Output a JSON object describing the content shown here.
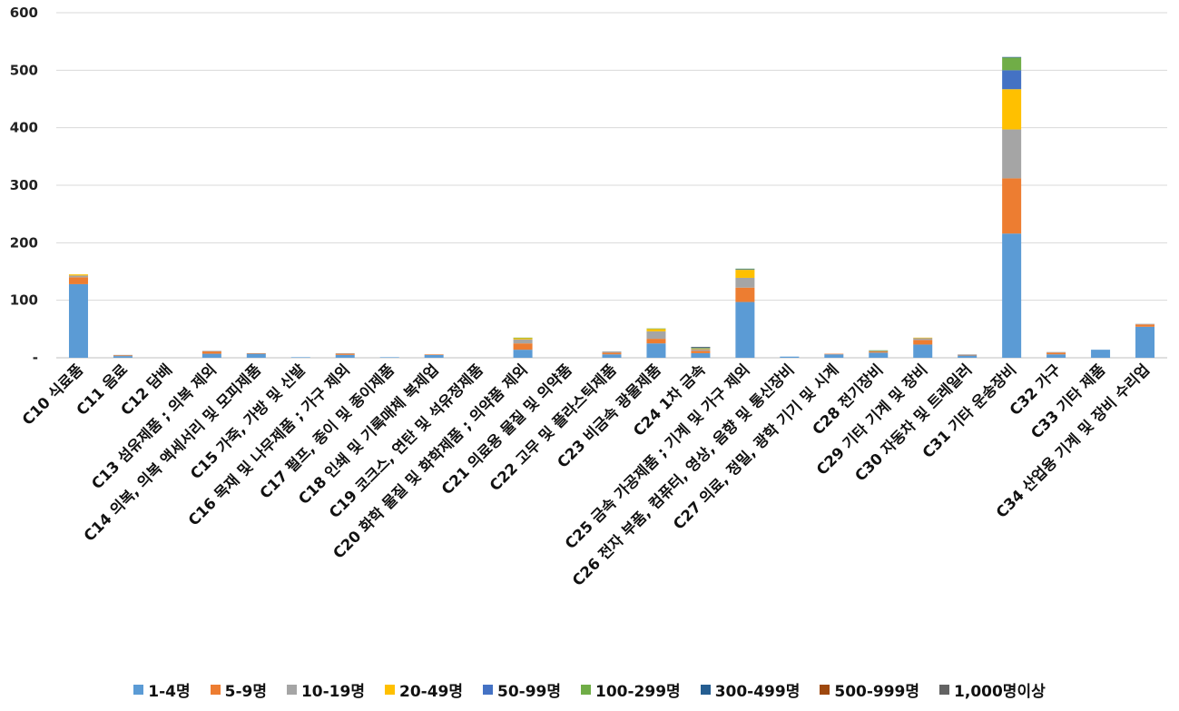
{
  "chart_data": {
    "type": "bar",
    "stacked": true,
    "title": "",
    "xlabel": "",
    "ylabel": "",
    "ylim": [
      0,
      600
    ],
    "yticks": [
      {
        "value": 0,
        "label": "-"
      },
      {
        "value": 100,
        "label": "100"
      },
      {
        "value": 200,
        "label": "200"
      },
      {
        "value": 300,
        "label": "300"
      },
      {
        "value": 400,
        "label": "400"
      },
      {
        "value": 500,
        "label": "500"
      },
      {
        "value": 600,
        "label": "600"
      }
    ],
    "grid": true,
    "legend_position": "bottom",
    "categories": [
      "C10 식료품",
      "C11 음료",
      "C12 담배",
      "C13 섬유제품 ; 의복 제외",
      "C14 의복, 의복 액세서리 및 모피제품",
      "C15 가죽, 가방 및 신발",
      "C16 목재 및 나무제품 ; 가구 제외",
      "C17 펄프, 종이 및 종이제품",
      "C18 인쇄 및 기록매체 복제업",
      "C19 코크스, 연탄 및 석유정제품",
      "C20 화학 물질 및 화학제품 ; 의약품 제외",
      "C21 의료용 물질 및 의약품",
      "C22 고무 및 플라스틱제품",
      "C23 비금속 광물제품",
      "C24 1차 금속",
      "C25 금속 가공제품 ; 기계 및 가구 제외",
      "C26 전자 부품, 컴퓨터, 영상, 음향 및 통신장비",
      "C27 의료, 정밀, 광학 기기 및 시계",
      "C28 전기장비",
      "C29 기타 기계 및 장비",
      "C30 자동차 및 트레일러",
      "C31 기타 운송장비",
      "C32 가구",
      "C33 기타 제품",
      "C34 산업용 기계 및 장비 수리업"
    ],
    "series": [
      {
        "name": "1-4명",
        "color": "#5B9BD5",
        "values": [
          128,
          3,
          0,
          7,
          7,
          1,
          5,
          1,
          5,
          0,
          14,
          0,
          6,
          25,
          8,
          97,
          2,
          6,
          9,
          23,
          4,
          216,
          6,
          14,
          54
        ]
      },
      {
        "name": "5-9명",
        "color": "#ED7D31",
        "values": [
          12,
          1,
          0,
          4,
          1,
          0,
          2,
          0,
          1,
          0,
          11,
          0,
          3,
          8,
          4,
          25,
          0,
          1,
          2,
          8,
          1,
          96,
          3,
          0,
          4
        ]
      },
      {
        "name": "10-19명",
        "color": "#A5A5A5",
        "values": [
          3,
          1,
          0,
          1,
          0,
          0,
          1,
          0,
          0,
          0,
          7,
          0,
          2,
          13,
          3,
          17,
          0,
          0,
          1,
          3,
          1,
          85,
          1,
          0,
          1
        ]
      },
      {
        "name": "20-49명",
        "color": "#FFC000",
        "values": [
          2,
          0,
          0,
          0,
          0,
          0,
          0,
          0,
          0,
          0,
          2,
          0,
          0,
          4,
          1,
          14,
          0,
          0,
          0,
          1,
          0,
          70,
          0,
          0,
          0
        ]
      },
      {
        "name": "50-99명",
        "color": "#4472C4",
        "values": [
          0,
          0,
          0,
          0,
          0,
          0,
          0,
          0,
          0,
          0,
          0,
          0,
          0,
          0,
          0,
          1,
          0,
          0,
          0,
          0,
          0,
          33,
          0,
          0,
          0
        ]
      },
      {
        "name": "100-299명",
        "color": "#70AD47",
        "values": [
          0,
          0,
          0,
          0,
          0,
          0,
          0,
          0,
          0,
          0,
          1,
          0,
          0,
          1,
          1,
          1,
          0,
          0,
          1,
          0,
          0,
          22,
          0,
          0,
          0
        ]
      },
      {
        "name": "300-499명",
        "color": "#255E91",
        "values": [
          0,
          0,
          0,
          0,
          0,
          0,
          0,
          0,
          0,
          0,
          0,
          0,
          0,
          0,
          1,
          0,
          0,
          0,
          0,
          0,
          0,
          1,
          0,
          0,
          0
        ]
      },
      {
        "name": "500-999명",
        "color": "#9E480E",
        "values": [
          0,
          0,
          0,
          0,
          0,
          0,
          0,
          0,
          0,
          0,
          0,
          0,
          0,
          0,
          0,
          0,
          0,
          0,
          0,
          0,
          0,
          0,
          0,
          0,
          0
        ]
      },
      {
        "name": "1,000명이상",
        "color": "#636363",
        "values": [
          0,
          0,
          0,
          0,
          0,
          0,
          0,
          0,
          0,
          0,
          0,
          0,
          0,
          0,
          1,
          0,
          0,
          0,
          0,
          0,
          0,
          0,
          0,
          0,
          0
        ]
      }
    ]
  }
}
